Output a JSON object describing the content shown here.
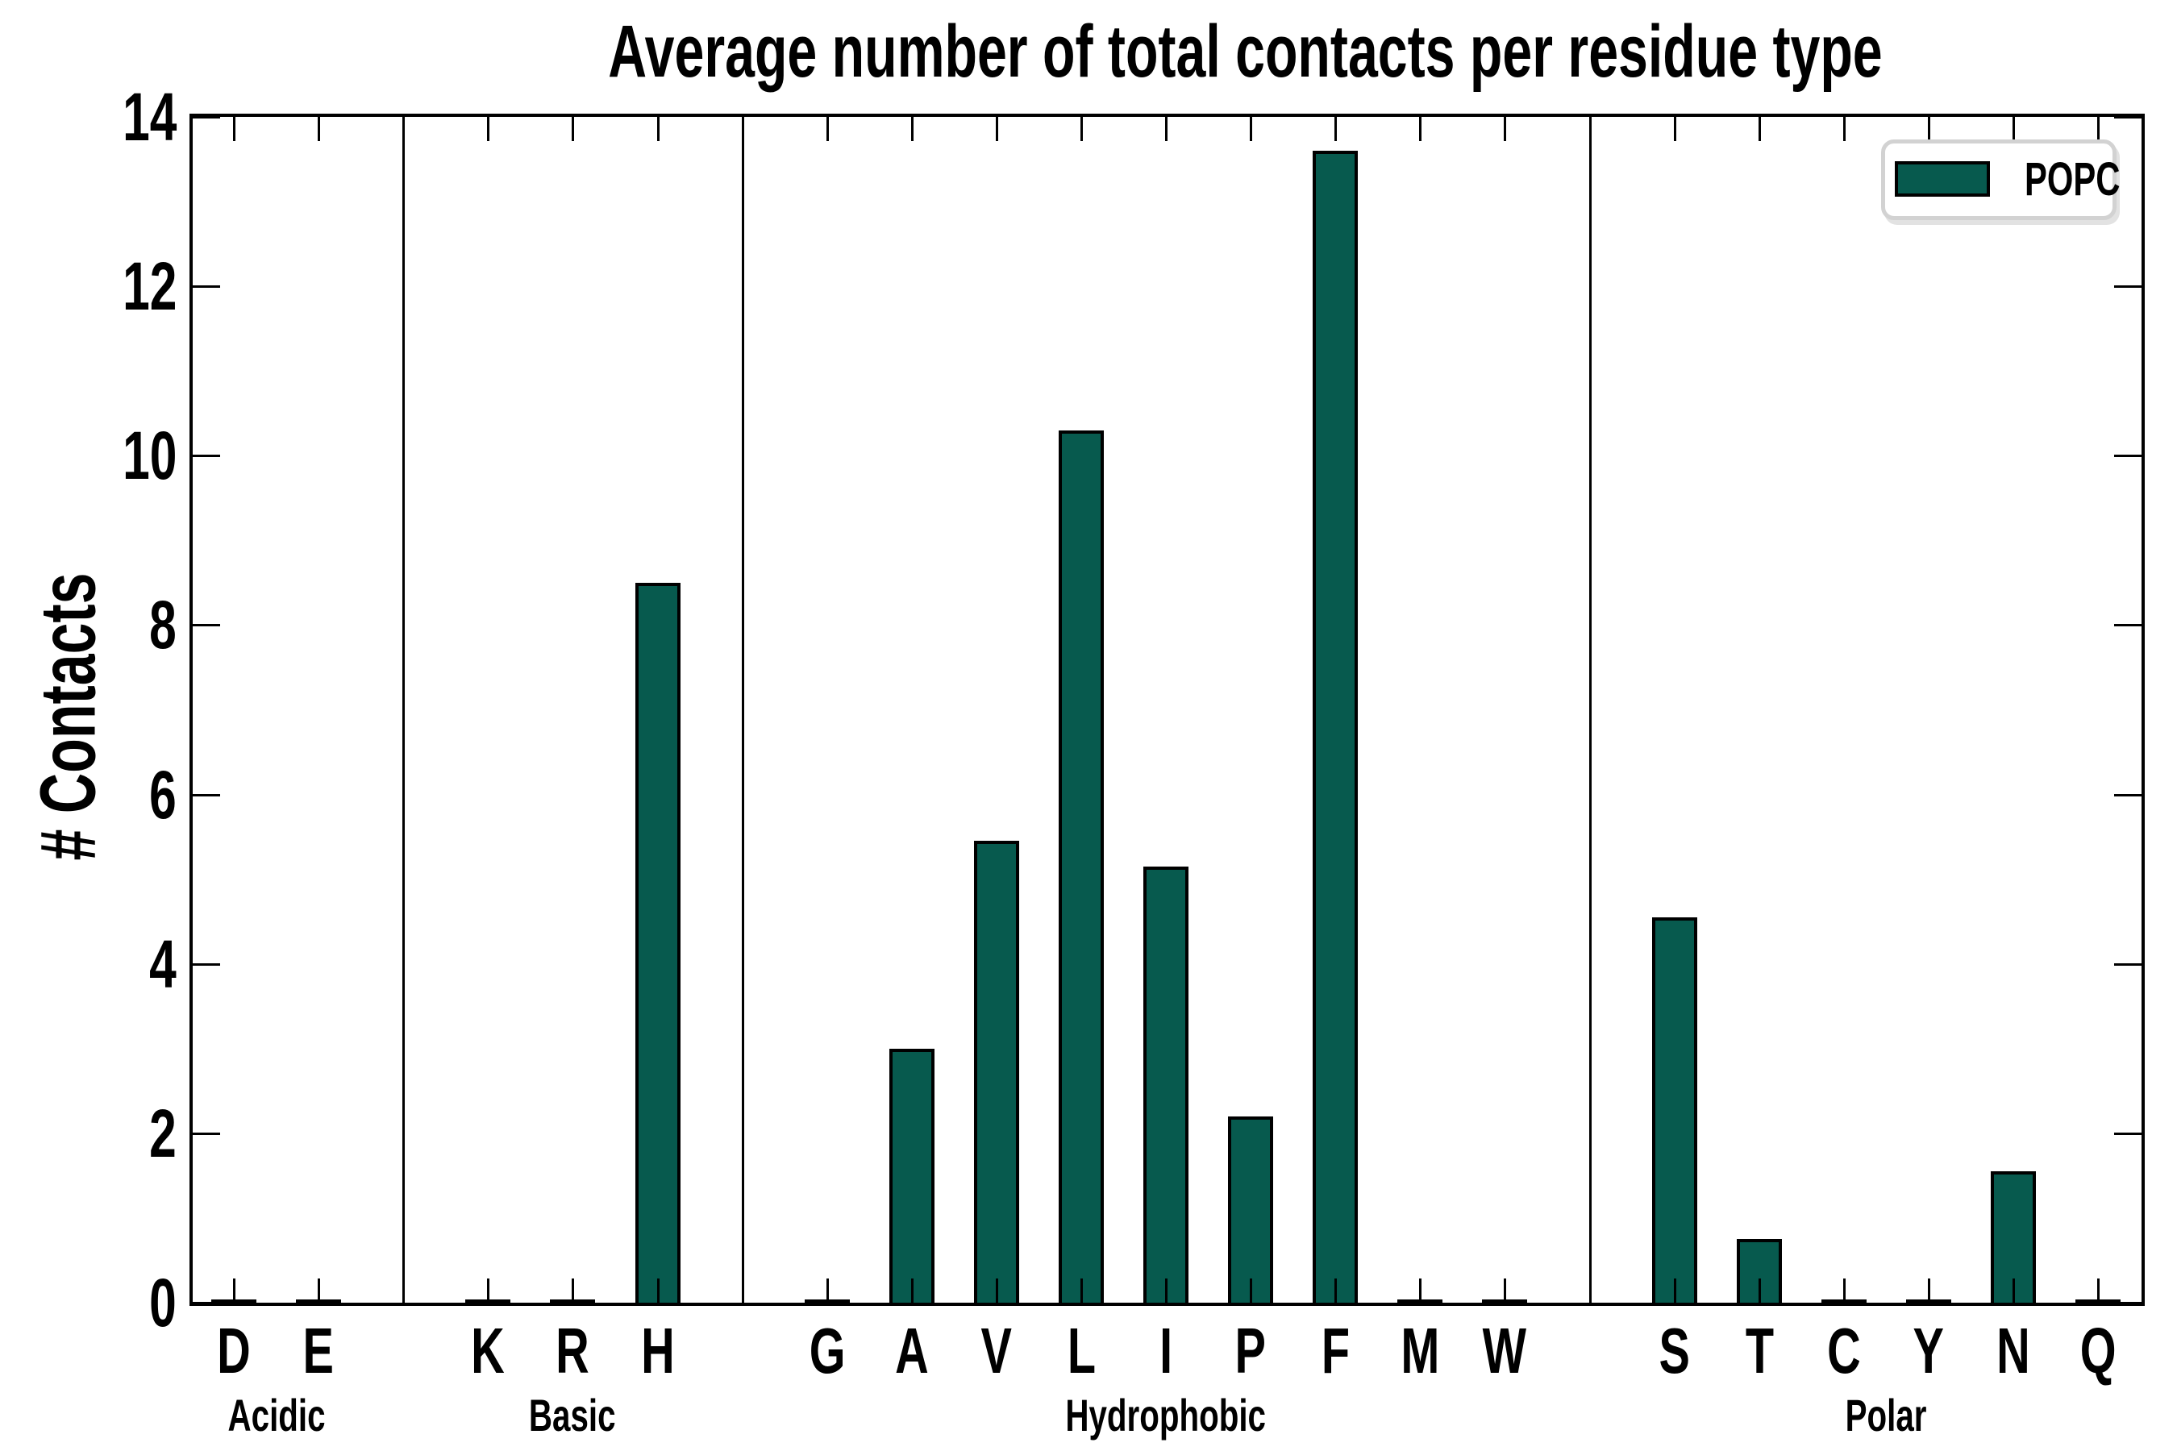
{
  "chart_data": {
    "type": "bar",
    "title": "Average number of total contacts per residue type",
    "xlabel": "",
    "ylabel": "# Contacts",
    "ylim": [
      0,
      14
    ],
    "yticks": [
      0,
      2,
      4,
      6,
      8,
      10,
      12,
      14
    ],
    "grid": false,
    "legend": {
      "label": "POPC",
      "position": "upper right"
    },
    "colors": {
      "bar_fill": "#075a4e",
      "bar_edge": "#000000",
      "legend_border": "#d2d2d2"
    },
    "groups": [
      {
        "label": "Acidic",
        "residues": [
          {
            "label": "D",
            "value": 0.03
          },
          {
            "label": "E",
            "value": 0.03
          }
        ]
      },
      {
        "label": "Basic",
        "residues": [
          {
            "label": "K",
            "value": 0.03
          },
          {
            "label": "R",
            "value": 0.03
          },
          {
            "label": "H",
            "value": 8.5
          }
        ]
      },
      {
        "label": "Hydrophobic",
        "residues": [
          {
            "label": "G",
            "value": 0.03
          },
          {
            "label": "A",
            "value": 3.0
          },
          {
            "label": "V",
            "value": 5.45
          },
          {
            "label": "L",
            "value": 10.3
          },
          {
            "label": "I",
            "value": 5.15
          },
          {
            "label": "P",
            "value": 2.2
          },
          {
            "label": "F",
            "value": 13.6
          },
          {
            "label": "M",
            "value": 0.03
          },
          {
            "label": "W",
            "value": 0.03
          }
        ]
      },
      {
        "label": "Polar",
        "residues": [
          {
            "label": "S",
            "value": 4.55
          },
          {
            "label": "T",
            "value": 0.75
          },
          {
            "label": "C",
            "value": 0.03
          },
          {
            "label": "Y",
            "value": 0.03
          },
          {
            "label": "N",
            "value": 1.55
          },
          {
            "label": "Q",
            "value": 0.03
          }
        ]
      }
    ]
  }
}
